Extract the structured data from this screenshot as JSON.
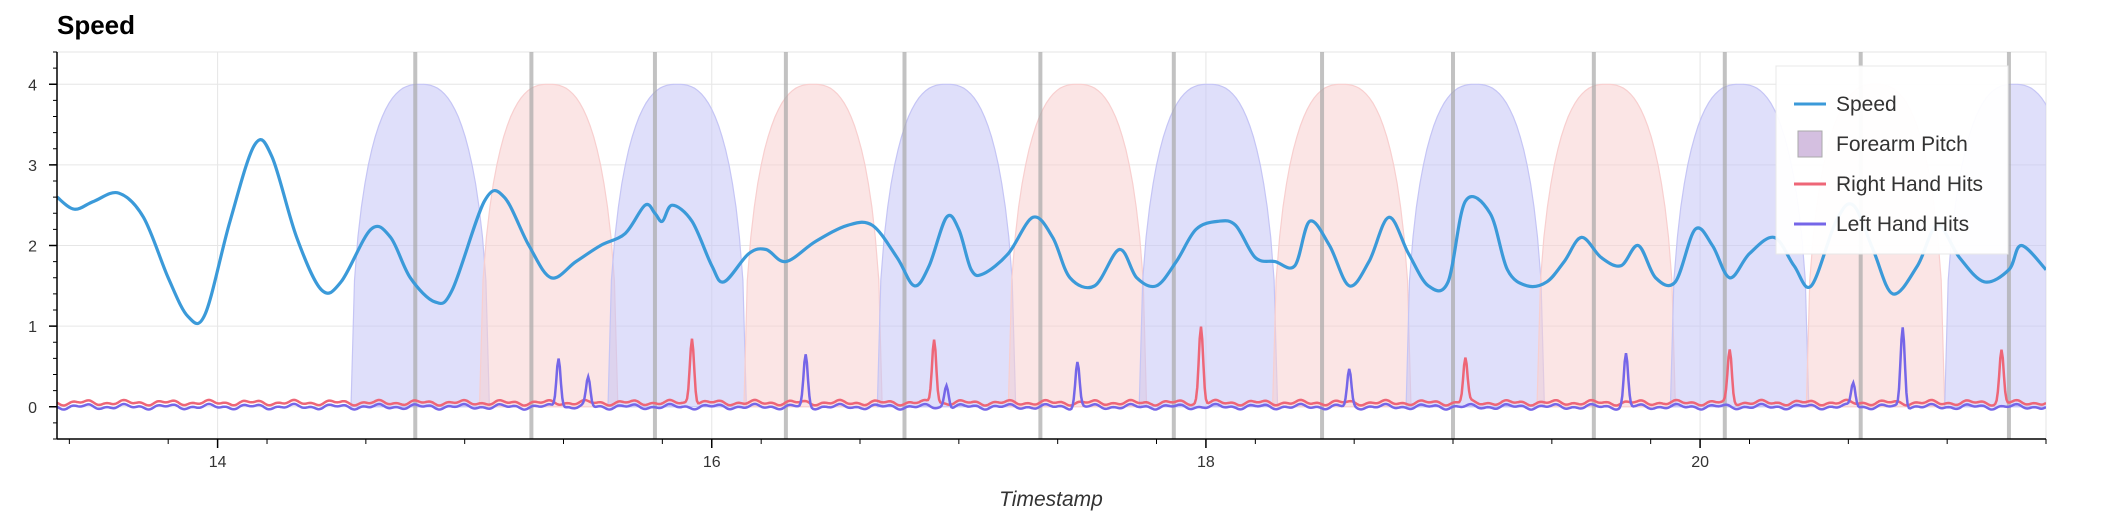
{
  "chart_data": {
    "type": "line",
    "title": "Speed",
    "xlabel": "Timestamp",
    "ylabel": "",
    "xlim": [
      13.35,
      21.4
    ],
    "ylim": [
      -0.4,
      4.4
    ],
    "x_ticks": [
      14,
      16,
      18,
      20
    ],
    "y_ticks": [
      0,
      1,
      2,
      3,
      4
    ],
    "grid": true,
    "legend_position": "top-right",
    "hit_markers": [
      14.8,
      15.27,
      15.77,
      16.3,
      16.78,
      17.33,
      17.87,
      18.47,
      19.0,
      19.57,
      20.1,
      20.65,
      21.25
    ],
    "series": [
      {
        "name": "Speed",
        "type": "line",
        "color": "#3b9ad9",
        "points": [
          [
            13.35,
            2.6
          ],
          [
            13.42,
            2.45
          ],
          [
            13.5,
            2.55
          ],
          [
            13.6,
            2.65
          ],
          [
            13.7,
            2.35
          ],
          [
            13.8,
            1.6
          ],
          [
            13.88,
            1.12
          ],
          [
            13.95,
            1.15
          ],
          [
            14.05,
            2.3
          ],
          [
            14.15,
            3.25
          ],
          [
            14.22,
            3.1
          ],
          [
            14.32,
            2.1
          ],
          [
            14.42,
            1.45
          ],
          [
            14.5,
            1.55
          ],
          [
            14.62,
            2.2
          ],
          [
            14.7,
            2.1
          ],
          [
            14.78,
            1.6
          ],
          [
            14.88,
            1.3
          ],
          [
            14.95,
            1.45
          ],
          [
            15.08,
            2.55
          ],
          [
            15.16,
            2.6
          ],
          [
            15.26,
            2.0
          ],
          [
            15.35,
            1.6
          ],
          [
            15.45,
            1.8
          ],
          [
            15.55,
            2.0
          ],
          [
            15.65,
            2.15
          ],
          [
            15.73,
            2.5
          ],
          [
            15.77,
            2.4
          ],
          [
            15.8,
            2.3
          ],
          [
            15.84,
            2.5
          ],
          [
            15.92,
            2.3
          ],
          [
            16.0,
            1.75
          ],
          [
            16.05,
            1.55
          ],
          [
            16.15,
            1.9
          ],
          [
            16.22,
            1.95
          ],
          [
            16.3,
            1.8
          ],
          [
            16.42,
            2.05
          ],
          [
            16.55,
            2.25
          ],
          [
            16.65,
            2.25
          ],
          [
            16.75,
            1.85
          ],
          [
            16.82,
            1.5
          ],
          [
            16.88,
            1.75
          ],
          [
            16.95,
            2.35
          ],
          [
            17.0,
            2.2
          ],
          [
            17.05,
            1.7
          ],
          [
            17.1,
            1.65
          ],
          [
            17.2,
            1.9
          ],
          [
            17.3,
            2.35
          ],
          [
            17.38,
            2.1
          ],
          [
            17.45,
            1.6
          ],
          [
            17.55,
            1.5
          ],
          [
            17.65,
            1.95
          ],
          [
            17.72,
            1.6
          ],
          [
            17.8,
            1.5
          ],
          [
            17.88,
            1.8
          ],
          [
            17.96,
            2.2
          ],
          [
            18.05,
            2.3
          ],
          [
            18.12,
            2.25
          ],
          [
            18.2,
            1.85
          ],
          [
            18.28,
            1.8
          ],
          [
            18.36,
            1.75
          ],
          [
            18.42,
            2.3
          ],
          [
            18.5,
            2.0
          ],
          [
            18.58,
            1.5
          ],
          [
            18.66,
            1.8
          ],
          [
            18.74,
            2.35
          ],
          [
            18.82,
            1.9
          ],
          [
            18.9,
            1.5
          ],
          [
            18.98,
            1.55
          ],
          [
            19.05,
            2.55
          ],
          [
            19.15,
            2.4
          ],
          [
            19.22,
            1.7
          ],
          [
            19.3,
            1.5
          ],
          [
            19.38,
            1.55
          ],
          [
            19.45,
            1.8
          ],
          [
            19.52,
            2.1
          ],
          [
            19.6,
            1.85
          ],
          [
            19.68,
            1.75
          ],
          [
            19.75,
            2.0
          ],
          [
            19.82,
            1.6
          ],
          [
            19.9,
            1.55
          ],
          [
            19.98,
            2.2
          ],
          [
            20.05,
            2.0
          ],
          [
            20.12,
            1.6
          ],
          [
            20.2,
            1.9
          ],
          [
            20.3,
            2.1
          ],
          [
            20.38,
            1.75
          ],
          [
            20.45,
            1.5
          ],
          [
            20.55,
            2.3
          ],
          [
            20.62,
            2.5
          ],
          [
            20.7,
            1.95
          ],
          [
            20.78,
            1.4
          ],
          [
            20.88,
            1.75
          ],
          [
            20.96,
            2.25
          ],
          [
            21.05,
            1.85
          ],
          [
            21.15,
            1.55
          ],
          [
            21.25,
            1.7
          ],
          [
            21.3,
            2.0
          ],
          [
            21.4,
            1.7
          ]
        ]
      },
      {
        "name": "Forearm Pitch",
        "type": "area",
        "color": "#d4bfe0",
        "peaks": [
          {
            "center": 14.82,
            "color": "#c5c5f5"
          },
          {
            "center": 15.34,
            "color": "#f8cfcf"
          },
          {
            "center": 15.86,
            "color": "#c5c5f5"
          },
          {
            "center": 16.41,
            "color": "#f8cfcf"
          },
          {
            "center": 16.95,
            "color": "#c5c5f5"
          },
          {
            "center": 17.48,
            "color": "#f8cfcf"
          },
          {
            "center": 18.01,
            "color": "#c5c5f5"
          },
          {
            "center": 18.55,
            "color": "#f8cfcf"
          },
          {
            "center": 19.09,
            "color": "#c5c5f5"
          },
          {
            "center": 19.62,
            "color": "#f8cfcf"
          },
          {
            "center": 20.16,
            "color": "#c5c5f5"
          },
          {
            "center": 20.71,
            "color": "#f8cfcf"
          },
          {
            "center": 21.27,
            "color": "#c5c5f5"
          }
        ],
        "peak_value": 4,
        "peak_half_width": 0.28
      },
      {
        "name": "Right Hand Hits",
        "type": "line",
        "color": "#ee6677",
        "base": 0.05,
        "spikes": [
          [
            15.92,
            0.82
          ],
          [
            16.9,
            0.8
          ],
          [
            17.98,
            0.95
          ],
          [
            19.05,
            0.55
          ],
          [
            20.12,
            0.65
          ],
          [
            21.22,
            0.65
          ]
        ]
      },
      {
        "name": "Left Hand Hits",
        "type": "line",
        "color": "#7566e8",
        "base": 0.0,
        "spikes": [
          [
            15.38,
            0.62
          ],
          [
            15.5,
            0.35
          ],
          [
            16.38,
            0.63
          ],
          [
            16.95,
            0.28
          ],
          [
            17.48,
            0.55
          ],
          [
            18.58,
            0.45
          ],
          [
            19.7,
            0.65
          ],
          [
            20.62,
            0.3
          ],
          [
            20.82,
            1.0
          ]
        ]
      }
    ]
  }
}
